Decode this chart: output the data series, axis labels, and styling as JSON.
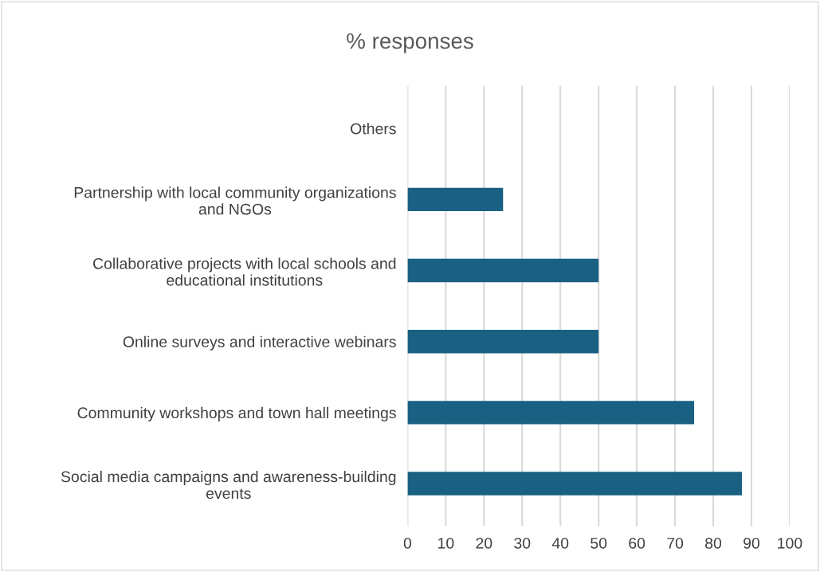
{
  "chart_data": {
    "type": "bar",
    "orientation": "horizontal",
    "title": "% responses",
    "categories": [
      "Others",
      "Partnership with local community organizations and NGOs",
      "Collaborative projects with local schools and educational institutions",
      "Online surveys and interactive webinars",
      "Community workshops and town hall meetings",
      "Social media campaigns and awareness-building events"
    ],
    "values": [
      0,
      25,
      50,
      50,
      75,
      87.5
    ],
    "color": "#1a6082",
    "xlim": [
      0,
      100
    ],
    "xticks": [
      0,
      10,
      20,
      30,
      40,
      50,
      60,
      70,
      80,
      90,
      100
    ],
    "grid": "x",
    "legend": false
  }
}
